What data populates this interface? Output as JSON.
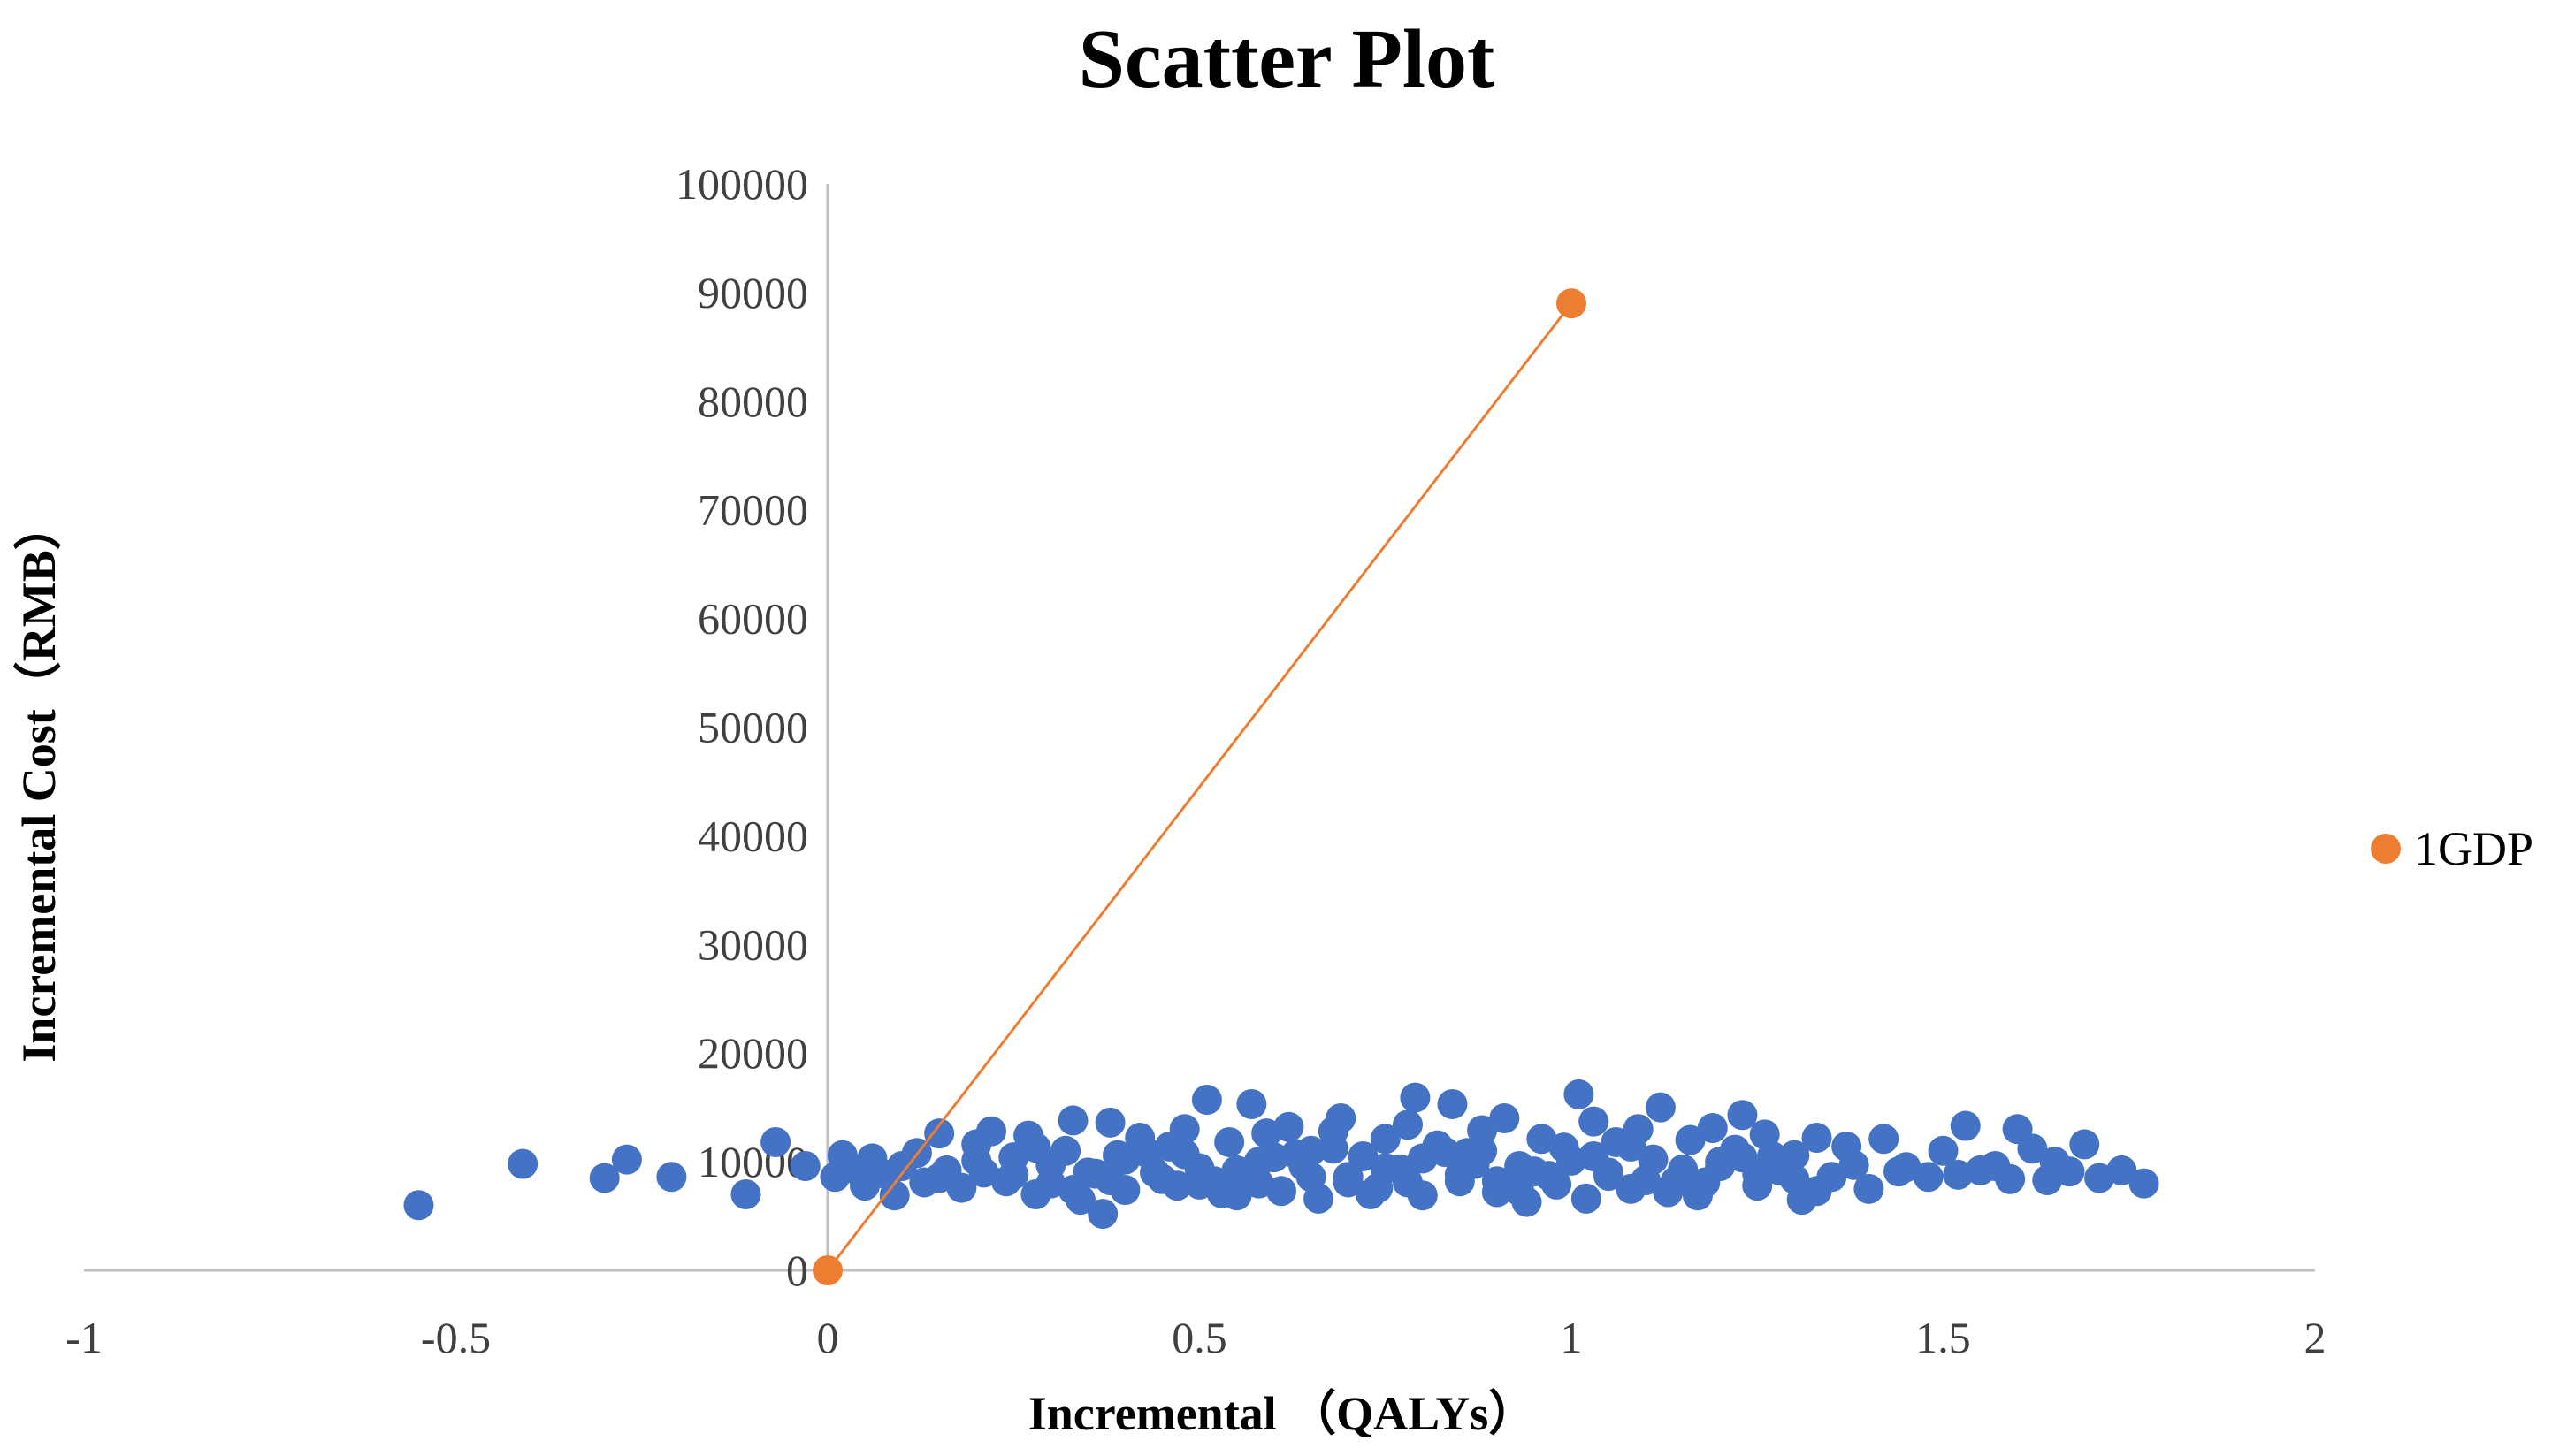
{
  "chart_data": {
    "type": "scatter",
    "title": "Scatter Plot",
    "xlabel": "Incremental （QALYs）",
    "ylabel": "Incremental Cost（RMB）",
    "xlim": [
      -1,
      2
    ],
    "ylim": [
      0,
      100000
    ],
    "x_ticks": [
      -1,
      -0.5,
      0,
      0.5,
      1,
      1.5,
      2
    ],
    "x_tick_labels": [
      "-1",
      "-0.5",
      "0",
      "0.5",
      "1",
      "1.5",
      "2"
    ],
    "y_ticks": [
      0,
      10000,
      20000,
      30000,
      40000,
      50000,
      60000,
      70000,
      80000,
      90000,
      100000
    ],
    "y_tick_labels": [
      "0",
      "10000",
      "20000",
      "30000",
      "40000",
      "50000",
      "60000",
      "70000",
      "80000",
      "90000",
      "100000"
    ],
    "grid": false,
    "legend_position": "right",
    "series": [
      {
        "kind": "scatter",
        "color": "#4472C4",
        "points": [
          [
            -0.55,
            6000
          ],
          [
            -0.41,
            9800
          ],
          [
            -0.3,
            8500
          ],
          [
            -0.27,
            10200
          ],
          [
            -0.21,
            8600
          ],
          [
            -0.11,
            7000
          ],
          [
            -0.07,
            11800
          ],
          [
            -0.03,
            9600
          ],
          [
            0.01,
            8600
          ],
          [
            0.02,
            10600
          ],
          [
            0.04,
            9200
          ],
          [
            0.05,
            7800
          ],
          [
            0.06,
            10300
          ],
          [
            0.08,
            8800
          ],
          [
            0.09,
            6900
          ],
          [
            0.1,
            9600
          ],
          [
            0.12,
            10800
          ],
          [
            0.13,
            8100
          ],
          [
            0.15,
            12600
          ],
          [
            0.16,
            9200
          ],
          [
            0.18,
            7600
          ],
          [
            0.2,
            11600
          ],
          [
            0.21,
            9000
          ],
          [
            0.22,
            12800
          ],
          [
            0.24,
            8200
          ],
          [
            0.25,
            10400
          ],
          [
            0.27,
            12400
          ],
          [
            0.28,
            7000
          ],
          [
            0.3,
            9700
          ],
          [
            0.32,
            11000
          ],
          [
            0.33,
            13800
          ],
          [
            0.34,
            6500
          ],
          [
            0.36,
            8900
          ],
          [
            0.37,
            5200
          ],
          [
            0.38,
            13600
          ],
          [
            0.39,
            10600
          ],
          [
            0.4,
            7400
          ],
          [
            0.42,
            12200
          ],
          [
            0.44,
            9000
          ],
          [
            0.46,
            11400
          ],
          [
            0.47,
            7800
          ],
          [
            0.48,
            13000
          ],
          [
            0.5,
            9400
          ],
          [
            0.51,
            15700
          ],
          [
            0.52,
            8200
          ],
          [
            0.54,
            11800
          ],
          [
            0.55,
            6900
          ],
          [
            0.57,
            15300
          ],
          [
            0.58,
            10000
          ],
          [
            0.59,
            12600
          ],
          [
            0.61,
            7300
          ],
          [
            0.62,
            13200
          ],
          [
            0.64,
            9600
          ],
          [
            0.65,
            11000
          ],
          [
            0.66,
            6600
          ],
          [
            0.68,
            12800
          ],
          [
            0.69,
            14000
          ],
          [
            0.7,
            8600
          ],
          [
            0.72,
            10500
          ],
          [
            0.74,
            7600
          ],
          [
            0.75,
            12100
          ],
          [
            0.77,
            9300
          ],
          [
            0.78,
            13400
          ],
          [
            0.79,
            15900
          ],
          [
            0.8,
            6900
          ],
          [
            0.82,
            11500
          ],
          [
            0.84,
            15300
          ],
          [
            0.85,
            8200
          ],
          [
            0.86,
            10800
          ],
          [
            0.88,
            12900
          ],
          [
            0.9,
            7200
          ],
          [
            0.91,
            14000
          ],
          [
            0.93,
            9600
          ],
          [
            0.94,
            6300
          ],
          [
            0.96,
            12100
          ],
          [
            0.97,
            8700
          ],
          [
            0.99,
            11300
          ],
          [
            1.01,
            16200
          ],
          [
            1.02,
            6600
          ],
          [
            1.03,
            13700
          ],
          [
            1.05,
            9000
          ],
          [
            1.06,
            11800
          ],
          [
            1.08,
            7500
          ],
          [
            1.09,
            13000
          ],
          [
            1.11,
            10200
          ],
          [
            1.12,
            15000
          ],
          [
            1.14,
            8200
          ],
          [
            1.16,
            12000
          ],
          [
            1.17,
            6900
          ],
          [
            1.19,
            13100
          ],
          [
            1.2,
            9600
          ],
          [
            1.22,
            11100
          ],
          [
            1.23,
            14300
          ],
          [
            1.25,
            7800
          ],
          [
            1.26,
            12500
          ],
          [
            1.28,
            9200
          ],
          [
            1.3,
            10600
          ],
          [
            1.31,
            6500
          ],
          [
            1.33,
            12200
          ],
          [
            1.35,
            8600
          ],
          [
            1.37,
            11400
          ],
          [
            1.38,
            9700
          ],
          [
            1.4,
            7500
          ],
          [
            1.42,
            12100
          ],
          [
            1.44,
            9100
          ],
          [
            1.45,
            9500
          ],
          [
            1.48,
            8600
          ],
          [
            1.5,
            11000
          ],
          [
            1.52,
            8800
          ],
          [
            1.53,
            13300
          ],
          [
            1.55,
            9200
          ],
          [
            1.57,
            9600
          ],
          [
            1.59,
            8400
          ],
          [
            1.6,
            13000
          ],
          [
            1.62,
            11200
          ],
          [
            1.64,
            8300
          ],
          [
            1.65,
            10000
          ],
          [
            1.67,
            9100
          ],
          [
            1.69,
            11600
          ],
          [
            1.71,
            8500
          ],
          [
            1.74,
            9200
          ],
          [
            1.77,
            8000
          ],
          [
            0.05,
            9000
          ],
          [
            0.15,
            8500
          ],
          [
            0.25,
            8800
          ],
          [
            0.35,
            9000
          ],
          [
            0.45,
            8400
          ],
          [
            0.55,
            9200
          ],
          [
            0.65,
            8600
          ],
          [
            0.75,
            9400
          ],
          [
            0.85,
            8800
          ],
          [
            0.95,
            9100
          ],
          [
            1.05,
            8700
          ],
          [
            1.15,
            9300
          ],
          [
            1.25,
            8900
          ],
          [
            0.2,
            10100
          ],
          [
            0.3,
            8000
          ],
          [
            0.4,
            10200
          ],
          [
            0.5,
            7900
          ],
          [
            0.6,
            10400
          ],
          [
            0.7,
            8100
          ],
          [
            0.8,
            10300
          ],
          [
            0.9,
            8200
          ],
          [
            1.0,
            10100
          ],
          [
            1.1,
            8300
          ],
          [
            1.2,
            10000
          ],
          [
            1.3,
            8400
          ],
          [
            0.43,
            10800
          ],
          [
            0.63,
            10700
          ],
          [
            0.83,
            10900
          ],
          [
            1.03,
            10500
          ],
          [
            1.23,
            10400
          ],
          [
            0.53,
            7100
          ],
          [
            0.73,
            7000
          ],
          [
            0.93,
            7300
          ],
          [
            1.13,
            7200
          ],
          [
            0.33,
            7400
          ],
          [
            1.33,
            7300
          ],
          [
            0.28,
            11300
          ],
          [
            0.68,
            11200
          ],
          [
            0.88,
            11000
          ],
          [
            1.08,
            11400
          ],
          [
            0.58,
            8000
          ],
          [
            0.78,
            8100
          ],
          [
            0.98,
            7900
          ],
          [
            1.18,
            8100
          ],
          [
            0.38,
            8300
          ],
          [
            0.48,
            10700
          ],
          [
            0.87,
            9800
          ],
          [
            1.27,
            10500
          ]
        ]
      },
      {
        "kind": "line",
        "name": "1GDP",
        "color": "#ED7D31",
        "points": [
          [
            0,
            0
          ],
          [
            1,
            89000
          ]
        ]
      }
    ]
  }
}
